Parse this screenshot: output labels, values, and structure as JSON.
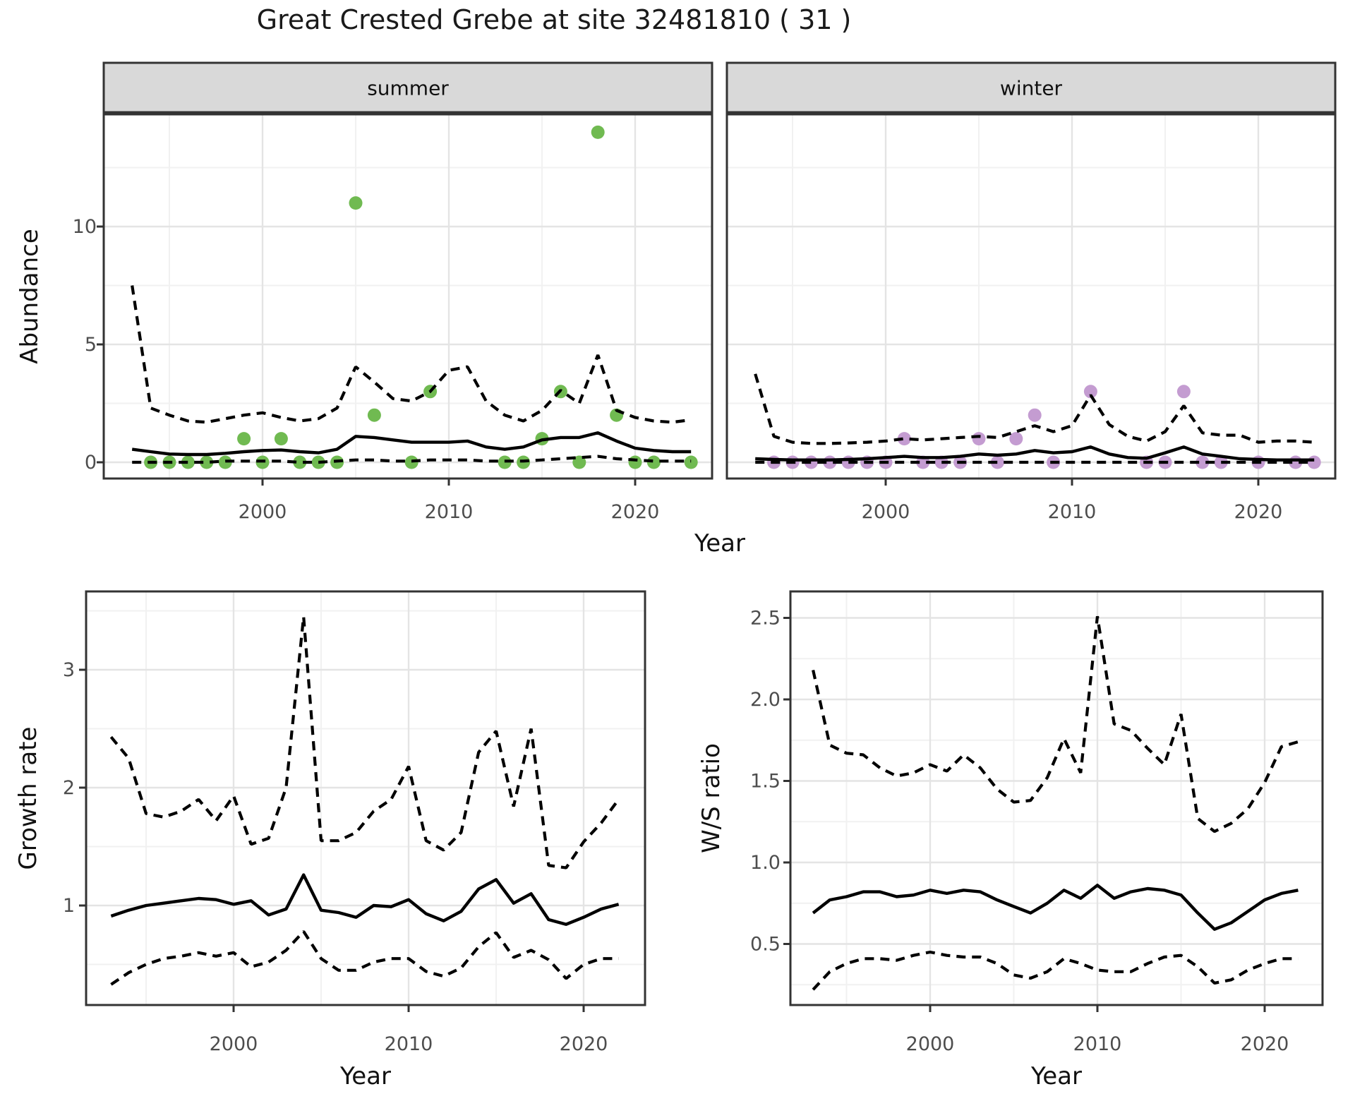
{
  "title": "Great Crested Grebe at site 32481810 ( 31 )",
  "top_xlabel": "Year",
  "colors": {
    "summer_point": "#70ba51",
    "winter_point": "#c49cd1",
    "line": "#000000",
    "strip_fill": "#d9d9d9",
    "panel_border": "#333333",
    "grid_major": "#e4e4e4",
    "grid_minor": "#f1f1f1",
    "tick_text": "#4d4d4d",
    "background": "#ffffff"
  },
  "chart_data": [
    {
      "id": "summer",
      "type": "line",
      "facet": "summer",
      "xlabel": "Year",
      "ylabel": "Abundance",
      "xlim": [
        1991.5,
        2024.1
      ],
      "ylim": [
        -0.7,
        15.0
      ],
      "x_major": [
        2000,
        2010,
        2020
      ],
      "x_minor": [
        1995,
        2005,
        2015
      ],
      "x_tick_labels": [
        "2000",
        "2010",
        "2020"
      ],
      "y_major": [
        0,
        5,
        10
      ],
      "y_minor": [
        2.5,
        7.5,
        12.5
      ],
      "y_tick_labels": [
        "0",
        "5",
        "10"
      ],
      "grid": true,
      "legend": "none",
      "years": [
        1993,
        1994,
        1995,
        1996,
        1997,
        1998,
        1999,
        2000,
        2001,
        2002,
        2003,
        2004,
        2005,
        2006,
        2007,
        2008,
        2009,
        2010,
        2011,
        2012,
        2013,
        2014,
        2015,
        2016,
        2017,
        2018,
        2019,
        2020,
        2021,
        2022,
        2023
      ],
      "fit": [
        0.55,
        0.45,
        0.35,
        0.33,
        0.33,
        0.38,
        0.45,
        0.5,
        0.52,
        0.45,
        0.4,
        0.55,
        1.1,
        1.05,
        0.95,
        0.85,
        0.85,
        0.85,
        0.9,
        0.65,
        0.55,
        0.65,
        0.95,
        1.05,
        1.05,
        1.25,
        0.9,
        0.6,
        0.5,
        0.45,
        0.45
      ],
      "upper_ci": [
        7.5,
        2.3,
        2.0,
        1.75,
        1.7,
        1.85,
        2.0,
        2.1,
        1.9,
        1.75,
        1.85,
        2.3,
        4.05,
        3.4,
        2.7,
        2.6,
        3.0,
        3.9,
        4.05,
        2.6,
        2.0,
        1.75,
        2.2,
        3.05,
        2.5,
        4.55,
        2.2,
        1.9,
        1.75,
        1.7,
        1.8
      ],
      "lower_ci": [
        0,
        0,
        0,
        0,
        0,
        0.05,
        0.05,
        0.05,
        0.05,
        0,
        0,
        0.05,
        0.1,
        0.1,
        0.05,
        0.05,
        0.1,
        0.1,
        0.1,
        0.05,
        0.05,
        0.05,
        0.1,
        0.15,
        0.2,
        0.25,
        0.15,
        0.1,
        0.05,
        0.05,
        0.05
      ],
      "points": [
        [
          1994,
          0
        ],
        [
          1995,
          0
        ],
        [
          1996,
          0
        ],
        [
          1997,
          0
        ],
        [
          1998,
          0
        ],
        [
          1999,
          1
        ],
        [
          2000,
          0
        ],
        [
          2001,
          1
        ],
        [
          2002,
          0
        ],
        [
          2003,
          0
        ],
        [
          2004,
          0
        ],
        [
          2005,
          11
        ],
        [
          2006,
          2
        ],
        [
          2008,
          0
        ],
        [
          2009,
          3
        ],
        [
          2013,
          0
        ],
        [
          2014,
          0
        ],
        [
          2015,
          1
        ],
        [
          2016,
          3
        ],
        [
          2017,
          0
        ],
        [
          2018,
          14
        ],
        [
          2019,
          2
        ],
        [
          2020,
          0
        ],
        [
          2021,
          0
        ],
        [
          2023,
          0
        ]
      ],
      "point_color": "#70ba51"
    },
    {
      "id": "winter",
      "type": "line",
      "facet": "winter",
      "xlabel": "Year",
      "ylabel": "Abundance",
      "xlim": [
        1991.5,
        2024.1
      ],
      "ylim": [
        -0.7,
        15.0
      ],
      "x_major": [
        2000,
        2010,
        2020
      ],
      "x_minor": [
        1995,
        2005,
        2015
      ],
      "x_tick_labels": [
        "2000",
        "2010",
        "2020"
      ],
      "y_major": [
        0,
        5,
        10
      ],
      "y_minor": [
        2.5,
        7.5,
        12.5
      ],
      "y_tick_labels": [],
      "grid": true,
      "legend": "none",
      "years": [
        1993,
        1994,
        1995,
        1996,
        1997,
        1998,
        1999,
        2000,
        2001,
        2002,
        2003,
        2004,
        2005,
        2006,
        2007,
        2008,
        2009,
        2010,
        2011,
        2012,
        2013,
        2014,
        2015,
        2016,
        2017,
        2018,
        2019,
        2020,
        2021,
        2022,
        2023
      ],
      "fit": [
        0.15,
        0.12,
        0.1,
        0.1,
        0.1,
        0.12,
        0.15,
        0.2,
        0.25,
        0.2,
        0.2,
        0.25,
        0.35,
        0.3,
        0.35,
        0.5,
        0.4,
        0.45,
        0.65,
        0.35,
        0.2,
        0.17,
        0.4,
        0.65,
        0.35,
        0.25,
        0.15,
        0.12,
        0.1,
        0.1,
        0.1
      ],
      "upper_ci": [
        3.75,
        1.1,
        0.85,
        0.8,
        0.8,
        0.82,
        0.85,
        0.9,
        1.0,
        0.95,
        1.0,
        1.05,
        1.1,
        1.05,
        1.3,
        1.55,
        1.3,
        1.55,
        2.85,
        1.6,
        1.1,
        0.9,
        1.3,
        2.4,
        1.25,
        1.15,
        1.15,
        0.85,
        0.9,
        0.9,
        0.85
      ],
      "lower_ci": [
        0,
        0,
        0,
        0,
        0,
        0,
        0,
        0,
        0,
        0,
        0,
        0,
        0,
        0,
        0,
        0,
        0,
        0,
        0,
        0,
        0,
        0,
        0,
        0,
        0,
        0,
        0,
        0,
        0,
        0,
        0
      ],
      "points": [
        [
          1994,
          0
        ],
        [
          1995,
          0
        ],
        [
          1996,
          0
        ],
        [
          1997,
          0
        ],
        [
          1998,
          0
        ],
        [
          1999,
          0
        ],
        [
          2000,
          0
        ],
        [
          2001,
          1
        ],
        [
          2002,
          0
        ],
        [
          2003,
          0
        ],
        [
          2004,
          0
        ],
        [
          2005,
          1
        ],
        [
          2006,
          0
        ],
        [
          2007,
          1
        ],
        [
          2008,
          2
        ],
        [
          2009,
          0
        ],
        [
          2011,
          3
        ],
        [
          2014,
          0
        ],
        [
          2015,
          0
        ],
        [
          2016,
          3
        ],
        [
          2017,
          0
        ],
        [
          2018,
          0
        ],
        [
          2020,
          0
        ],
        [
          2022,
          0
        ],
        [
          2023,
          0
        ]
      ],
      "point_color": "#c49cd1"
    },
    {
      "id": "growth",
      "type": "line",
      "facet": "",
      "xlabel": "Year",
      "ylabel": "Growth rate",
      "xlim": [
        1991.5,
        2023.5
      ],
      "ylim": [
        0.15,
        3.65
      ],
      "x_major": [
        2000,
        2010,
        2020
      ],
      "x_minor": [
        1995,
        2005,
        2015
      ],
      "x_tick_labels": [
        "2000",
        "2010",
        "2020"
      ],
      "y_major": [
        1,
        2,
        3
      ],
      "y_minor": [
        0.5,
        1.5,
        2.5,
        3.5
      ],
      "y_tick_labels": [
        "1",
        "2",
        "3"
      ],
      "grid": true,
      "legend": "none",
      "years": [
        1993,
        1994,
        1995,
        1996,
        1997,
        1998,
        1999,
        2000,
        2001,
        2002,
        2003,
        2004,
        2005,
        2006,
        2007,
        2008,
        2009,
        2010,
        2011,
        2012,
        2013,
        2014,
        2015,
        2016,
        2017,
        2018,
        2019,
        2020,
        2021,
        2022
      ],
      "fit": [
        0.91,
        0.96,
        1.0,
        1.02,
        1.04,
        1.06,
        1.05,
        1.01,
        1.04,
        0.92,
        0.97,
        1.26,
        0.96,
        0.94,
        0.9,
        1.0,
        0.99,
        1.05,
        0.93,
        0.87,
        0.95,
        1.14,
        1.22,
        1.02,
        1.1,
        0.88,
        0.84,
        0.9,
        0.97,
        1.01
      ],
      "upper_ci": [
        2.43,
        2.25,
        1.78,
        1.75,
        1.8,
        1.9,
        1.72,
        1.93,
        1.52,
        1.57,
        2.0,
        3.45,
        1.55,
        1.55,
        1.62,
        1.8,
        1.9,
        2.18,
        1.55,
        1.47,
        1.62,
        2.3,
        2.48,
        1.84,
        2.5,
        1.34,
        1.32,
        1.54,
        1.7,
        1.9
      ],
      "lower_ci": [
        0.33,
        0.43,
        0.5,
        0.55,
        0.57,
        0.6,
        0.57,
        0.6,
        0.48,
        0.52,
        0.62,
        0.78,
        0.55,
        0.45,
        0.45,
        0.52,
        0.55,
        0.55,
        0.44,
        0.4,
        0.47,
        0.65,
        0.77,
        0.56,
        0.62,
        0.54,
        0.38,
        0.5,
        0.55,
        0.55
      ],
      "points": [],
      "point_color": "#000000"
    },
    {
      "id": "ws",
      "type": "line",
      "facet": "",
      "xlabel": "Year",
      "ylabel": "W/S ratio",
      "xlim": [
        1991.5,
        2023.5
      ],
      "ylim": [
        0.12,
        2.67
      ],
      "x_major": [
        2000,
        2010,
        2020
      ],
      "x_minor": [
        1995,
        2005,
        2015
      ],
      "x_tick_labels": [
        "2000",
        "2010",
        "2020"
      ],
      "y_major": [
        0.5,
        1.0,
        1.5,
        2.0,
        2.5
      ],
      "y_minor": [
        0.25,
        0.75,
        1.25,
        1.75,
        2.25
      ],
      "y_tick_labels": [
        "0.5",
        "1.0",
        "1.5",
        "2.0",
        "2.5"
      ],
      "grid": true,
      "legend": "none",
      "years": [
        1993,
        1994,
        1995,
        1996,
        1997,
        1998,
        1999,
        2000,
        2001,
        2002,
        2003,
        2004,
        2005,
        2006,
        2007,
        2008,
        2009,
        2010,
        2011,
        2012,
        2013,
        2014,
        2015,
        2016,
        2017,
        2018,
        2019,
        2020,
        2021,
        2022
      ],
      "fit": [
        0.69,
        0.77,
        0.79,
        0.82,
        0.82,
        0.79,
        0.8,
        0.83,
        0.81,
        0.83,
        0.82,
        0.77,
        0.73,
        0.69,
        0.75,
        0.83,
        0.78,
        0.86,
        0.78,
        0.82,
        0.84,
        0.83,
        0.8,
        0.69,
        0.59,
        0.63,
        0.7,
        0.77,
        0.81,
        0.83
      ],
      "upper_ci": [
        2.18,
        1.72,
        1.67,
        1.66,
        1.58,
        1.53,
        1.55,
        1.6,
        1.56,
        1.66,
        1.58,
        1.45,
        1.37,
        1.38,
        1.52,
        1.76,
        1.55,
        2.51,
        1.85,
        1.81,
        1.7,
        1.6,
        1.91,
        1.27,
        1.19,
        1.24,
        1.33,
        1.49,
        1.71,
        1.74
      ],
      "lower_ci": [
        0.22,
        0.33,
        0.38,
        0.41,
        0.41,
        0.4,
        0.43,
        0.45,
        0.43,
        0.42,
        0.42,
        0.38,
        0.31,
        0.29,
        0.33,
        0.41,
        0.38,
        0.34,
        0.33,
        0.33,
        0.38,
        0.42,
        0.43,
        0.36,
        0.26,
        0.28,
        0.34,
        0.38,
        0.41,
        0.41
      ],
      "points": [],
      "point_color": "#000000"
    }
  ]
}
